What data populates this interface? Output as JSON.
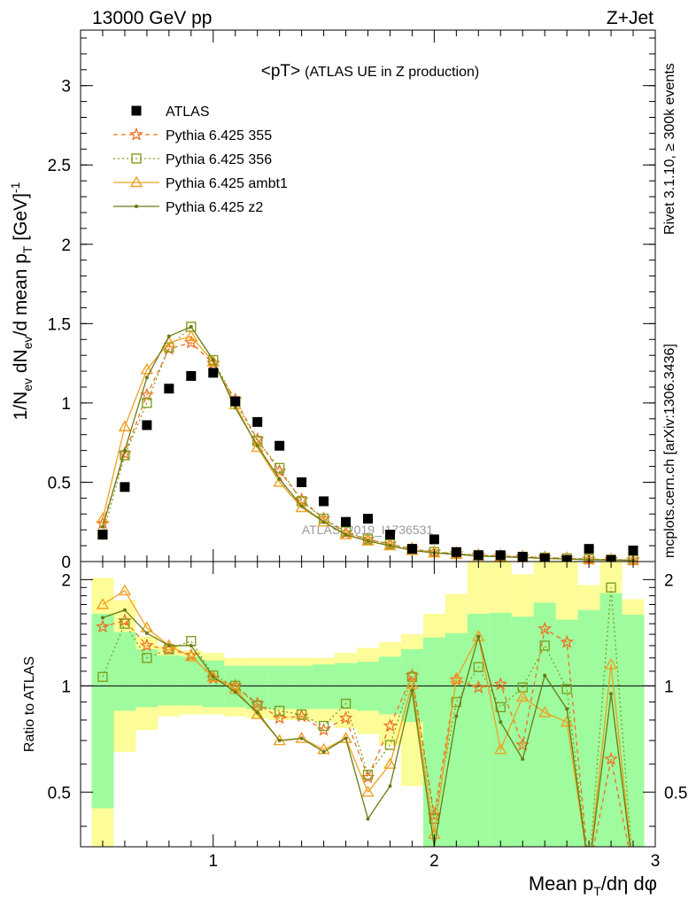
{
  "header": {
    "left": "13000 GeV pp",
    "right": "Z+Jet"
  },
  "side_labels": {
    "top": "Rivet 3.1.10, ≥ 300k events",
    "bottom": "mcplots.cern.ch [arXiv:1306.3436]"
  },
  "colors": {
    "atlas": "#000000",
    "py355": "#f07020",
    "py356": "#80a020",
    "ambt1": "#f0a020",
    "z2": "#6a7a10",
    "band_stat": "#9efc9e",
    "band_tot": "#fcfc98"
  },
  "chart_data": [
    {
      "type": "scatter",
      "title": "<pT> (ATLAS UE in Z production)",
      "title_main": "<pT>",
      "title_sub": "(ATLAS UE in Z production)",
      "watermark": "ATLAS_2019_I1736531",
      "ylabel": "1/N_ev dN_ev/d mean p_T [GeV]^-1",
      "xlim": [
        0.4,
        3.0
      ],
      "ylim": [
        0,
        3.35
      ],
      "yticks": [
        0,
        0.5,
        1,
        1.5,
        2,
        2.5,
        3
      ],
      "yticklabels": [
        "0",
        "0.5",
        "1",
        "1.5",
        "2",
        "2.5",
        "3"
      ],
      "legend_position": "top-left",
      "x": [
        0.5,
        0.6,
        0.7,
        0.8,
        0.9,
        1.0,
        1.1,
        1.2,
        1.3,
        1.4,
        1.5,
        1.6,
        1.7,
        1.8,
        1.9,
        2.0,
        2.1,
        2.2,
        2.3,
        2.4,
        2.5,
        2.6,
        2.7,
        2.8,
        2.9
      ],
      "series": [
        {
          "name": "ATLAS",
          "key": "atlas",
          "marker": "square",
          "line": "none",
          "values": [
            0.17,
            0.47,
            0.86,
            1.09,
            1.17,
            1.19,
            1.01,
            0.88,
            0.73,
            0.5,
            0.38,
            0.25,
            0.27,
            0.17,
            0.08,
            0.14,
            0.06,
            0.04,
            0.04,
            0.03,
            0.02,
            0.01,
            0.08,
            0.01,
            0.07
          ]
        },
        {
          "name": "Pythia 6.425 355",
          "key": "py355",
          "marker": "star",
          "line": "dashed",
          "values": [
            0.24,
            0.68,
            1.05,
            1.34,
            1.38,
            1.25,
            1.02,
            0.77,
            0.57,
            0.39,
            0.27,
            0.18,
            0.14,
            0.11,
            0.08,
            0.06,
            0.05,
            0.04,
            0.035,
            0.03,
            0.025,
            0.02,
            0.015,
            0.012,
            0.01
          ]
        },
        {
          "name": "Pythia 6.425 356",
          "key": "py356",
          "marker": "open-square",
          "line": "dotted",
          "values": [
            0.17,
            0.67,
            1.0,
            1.35,
            1.48,
            1.27,
            1.01,
            0.76,
            0.59,
            0.38,
            0.27,
            0.19,
            0.14,
            0.11,
            0.08,
            0.06,
            0.05,
            0.04,
            0.035,
            0.03,
            0.025,
            0.02,
            0.015,
            0.012,
            0.01
          ]
        },
        {
          "name": "Pythia 6.425 ambt1",
          "key": "ambt1",
          "marker": "triangle",
          "line": "solid",
          "values": [
            0.27,
            0.85,
            1.21,
            1.38,
            1.42,
            1.26,
            0.99,
            0.72,
            0.5,
            0.34,
            0.25,
            0.17,
            0.13,
            0.1,
            0.07,
            0.055,
            0.045,
            0.035,
            0.03,
            0.025,
            0.02,
            0.016,
            0.012,
            0.01,
            0.008
          ]
        },
        {
          "name": "Pythia 6.425 z2",
          "key": "z2",
          "marker": "dot",
          "line": "solid",
          "values": [
            0.22,
            0.7,
            1.16,
            1.42,
            1.48,
            1.27,
            0.97,
            0.73,
            0.52,
            0.35,
            0.25,
            0.17,
            0.13,
            0.1,
            0.07,
            0.055,
            0.045,
            0.035,
            0.03,
            0.025,
            0.02,
            0.016,
            0.012,
            0.01,
            0.008
          ]
        }
      ]
    },
    {
      "type": "line",
      "ylabel": "Ratio to ATLAS",
      "xlabel": "Mean p_T/dη dφ",
      "xlim": [
        0.4,
        3.0
      ],
      "ylim": [
        0.35,
        2.25
      ],
      "xticks": [
        1,
        2,
        3
      ],
      "xticklabels": [
        "1",
        "2",
        "3"
      ],
      "yticks": [
        0.5,
        1,
        2
      ],
      "yticklabels": [
        "0.5",
        "1",
        "2"
      ],
      "reference": 1,
      "bins": [
        0.45,
        0.55,
        0.65,
        0.75,
        0.85,
        0.95,
        1.05,
        1.15,
        1.25,
        1.35,
        1.45,
        1.55,
        1.65,
        1.75,
        1.85,
        1.95,
        2.05,
        2.15,
        2.25,
        2.35,
        2.45,
        2.55,
        2.65,
        2.75,
        2.85,
        2.95
      ],
      "band_stat": [
        [
          0.45,
          1.6
        ],
        [
          0.85,
          1.42
        ],
        [
          0.87,
          1.27
        ],
        [
          0.88,
          1.22
        ],
        [
          0.88,
          1.21
        ],
        [
          0.87,
          1.18
        ],
        [
          0.87,
          1.14
        ],
        [
          0.86,
          1.14
        ],
        [
          0.86,
          1.14
        ],
        [
          0.86,
          1.14
        ],
        [
          0.86,
          1.15
        ],
        [
          0.86,
          1.16
        ],
        [
          0.85,
          1.17
        ],
        [
          0.83,
          1.21
        ],
        [
          0.79,
          1.27
        ],
        [
          0.35,
          1.37
        ],
        [
          0.35,
          1.41
        ],
        [
          0.35,
          1.6
        ],
        [
          0.35,
          1.61
        ],
        [
          0.35,
          1.57
        ],
        [
          0.35,
          1.72
        ],
        [
          0.35,
          1.54
        ],
        [
          0.35,
          1.64
        ],
        [
          0.35,
          1.83
        ],
        [
          0.35,
          1.59
        ]
      ],
      "band_tot": [
        [
          0.35,
          2.02
        ],
        [
          0.65,
          1.75
        ],
        [
          0.75,
          1.38
        ],
        [
          0.82,
          1.3
        ],
        [
          0.83,
          1.26
        ],
        [
          0.83,
          1.24
        ],
        [
          0.82,
          1.2
        ],
        [
          0.81,
          1.2
        ],
        [
          0.8,
          1.2
        ],
        [
          0.8,
          1.2
        ],
        [
          0.79,
          1.2
        ],
        [
          0.76,
          1.24
        ],
        [
          0.73,
          1.28
        ],
        [
          0.68,
          1.33
        ],
        [
          0.52,
          1.4
        ],
        [
          0.35,
          1.6
        ],
        [
          0.35,
          1.82
        ],
        [
          0.35,
          2.25
        ],
        [
          0.35,
          2.25
        ],
        [
          0.35,
          2.07
        ],
        [
          0.35,
          2.25
        ],
        [
          0.35,
          2.25
        ],
        [
          0.35,
          1.93
        ],
        [
          0.35,
          2.25
        ],
        [
          0.35,
          1.76
        ]
      ],
      "x": [
        0.5,
        0.6,
        0.7,
        0.8,
        0.9,
        1.0,
        1.1,
        1.2,
        1.3,
        1.4,
        1.5,
        1.6,
        1.7,
        1.8,
        1.9,
        2.0,
        2.1,
        2.2,
        2.3,
        2.4,
        2.5,
        2.6,
        2.7,
        2.8,
        2.9
      ],
      "series": [
        {
          "name": "Pythia 6.425 355",
          "key": "py355",
          "marker": "star",
          "line": "dashed",
          "values": [
            1.47,
            1.53,
            1.3,
            1.27,
            1.22,
            1.05,
            1.0,
            0.89,
            0.81,
            0.82,
            0.75,
            0.81,
            0.55,
            0.77,
            1.07,
            0.43,
            1.04,
            0.99,
            1.01,
            0.68,
            1.45,
            1.33,
            0.3,
            0.62,
            0.3
          ]
        },
        {
          "name": "Pythia 6.425 356",
          "key": "py356",
          "marker": "open-square",
          "line": "dotted",
          "values": [
            1.06,
            1.5,
            1.2,
            1.27,
            1.34,
            1.07,
            1.0,
            0.88,
            0.85,
            0.83,
            0.77,
            0.89,
            0.56,
            0.68,
            1.06,
            0.42,
            0.9,
            1.13,
            0.87,
            0.99,
            1.3,
            0.98,
            0.3,
            1.9,
            0.3
          ]
        },
        {
          "name": "Pythia 6.425 ambt1",
          "key": "ambt1",
          "marker": "triangle",
          "line": "solid",
          "values": [
            1.7,
            1.86,
            1.46,
            1.3,
            1.21,
            1.06,
            0.98,
            0.83,
            0.7,
            0.71,
            0.66,
            0.71,
            0.5,
            0.6,
            1.01,
            0.38,
            1.05,
            1.38,
            0.66,
            0.93,
            0.84,
            0.79,
            0.3,
            1.15,
            0.3
          ]
        },
        {
          "name": "Pythia 6.425 z2",
          "key": "z2",
          "marker": "dot",
          "line": "solid",
          "values": [
            1.56,
            1.64,
            1.41,
            1.3,
            1.3,
            1.06,
            0.96,
            0.84,
            0.7,
            0.71,
            0.65,
            0.71,
            0.42,
            0.52,
            0.97,
            0.35,
            0.82,
            1.38,
            0.79,
            0.62,
            1.07,
            0.86,
            0.3,
            0.95,
            0.3
          ]
        }
      ]
    }
  ]
}
